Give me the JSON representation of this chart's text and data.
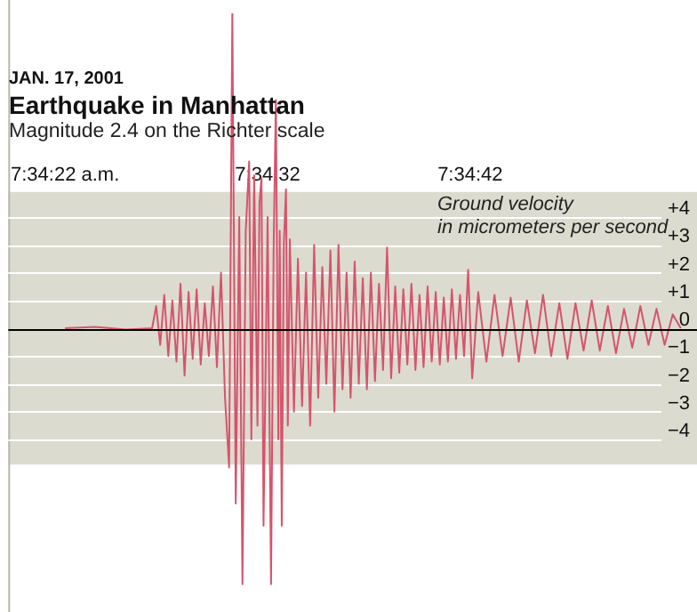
{
  "chart_data": {
    "type": "line",
    "title": "Earthquake in Manhattan",
    "subtitle": "Magnitude 2.4 on the Richter scale",
    "annotations": [
      "JAN. 17, 2001"
    ],
    "ylabel": "Ground velocity\nin micrometers per second",
    "xlim": [
      7.572,
      7.581444
    ],
    "ylim": [
      -10.2,
      11.8
    ],
    "xticks": [
      {
        "value": 7.572778,
        "label": "7:34:22 a.m."
      },
      {
        "value": 7.575556,
        "label": "7:34:32"
      },
      {
        "value": 7.578333,
        "label": "7:34:42"
      }
    ],
    "yticks": [
      {
        "value": 4,
        "label": "+4"
      },
      {
        "value": 3,
        "label": "+3"
      },
      {
        "value": 2,
        "label": "+2"
      },
      {
        "value": 1,
        "label": "+1"
      },
      0,
      {
        "value": -1,
        "label": "−1"
      },
      {
        "value": -2,
        "label": "−2"
      },
      {
        "value": -3,
        "label": "−3"
      },
      {
        "value": -4,
        "label": "−4"
      }
    ],
    "grid": "y",
    "legend": false,
    "marker": "none",
    "line_style": "solid",
    "bands": [
      {
        "axis": "y",
        "from": -4.9,
        "to": 4.9,
        "color": "#dcdbcf"
      }
    ],
    "ref_lines": [
      {
        "axis": "y",
        "value": 0,
        "color": "#000000"
      }
    ],
    "series": [
      {
        "color": "#d5546c",
        "x": [
          7.572778,
          7.573194,
          7.573611,
          7.573972,
          7.574028,
          7.574083,
          7.574139,
          7.574194,
          7.57425,
          7.574306,
          7.574361,
          7.574417,
          7.574472,
          7.574528,
          7.574583,
          7.574639,
          7.574694,
          7.57475,
          7.574806,
          7.574861,
          7.574917,
          7.574972,
          7.575028,
          7.575072,
          7.575119,
          7.575167,
          7.575211,
          7.575256,
          7.575303,
          7.575333,
          7.575372,
          7.575417,
          7.575444,
          7.575472,
          7.5755,
          7.575556,
          7.575603,
          7.575639,
          7.575669,
          7.575703,
          7.575722,
          7.57575,
          7.575778,
          7.575808,
          7.575833,
          7.575861,
          7.575917,
          7.575972,
          7.576028,
          7.576083,
          7.576139,
          7.576194,
          7.57625,
          7.576306,
          7.576361,
          7.576417,
          7.576472,
          7.576528,
          7.576583,
          7.576639,
          7.576694,
          7.57675,
          7.576806,
          7.576861,
          7.576917,
          7.576972,
          7.577028,
          7.577083,
          7.577139,
          7.577194,
          7.57725,
          7.577306,
          7.577361,
          7.577417,
          7.577472,
          7.577528,
          7.577583,
          7.577639,
          7.577694,
          7.57775,
          7.577806,
          7.577861,
          7.577917,
          7.577972,
          7.578028,
          7.578083,
          7.578139,
          7.578194,
          7.57825,
          7.578306,
          7.578361,
          7.578444,
          7.578556,
          7.578667,
          7.578778,
          7.578889,
          7.579,
          7.579111,
          7.579222,
          7.579333,
          7.579444,
          7.579556,
          7.579667,
          7.579778,
          7.579889,
          7.58,
          7.580111,
          7.580222,
          7.580333,
          7.580444,
          7.580556,
          7.580667,
          7.580778,
          7.580889,
          7.581,
          7.581111,
          7.581222
        ],
        "values": [
          0,
          0.05,
          -0.05,
          0,
          0.8,
          -0.6,
          1.2,
          -1.0,
          1.0,
          -1.2,
          1.6,
          -1.7,
          1.3,
          -1.1,
          1.4,
          -1.3,
          0.9,
          -1.0,
          1.5,
          -1.4,
          2.0,
          -2.5,
          -5,
          11.3,
          -6.3,
          4.0,
          -9.2,
          3.5,
          6.0,
          -4.0,
          5.5,
          -3.5,
          4.5,
          5.4,
          -7.1,
          4.0,
          -9.2,
          3.0,
          8.2,
          -4.0,
          3.5,
          -7.1,
          3.0,
          5.0,
          -3.5,
          3.2,
          -3.0,
          2.5,
          -2.8,
          2.0,
          -3.5,
          3.0,
          -2.5,
          2.2,
          -2.0,
          2.8,
          -3.0,
          3.0,
          -2.2,
          2.0,
          -2.5,
          2.4,
          -2.0,
          1.8,
          -2.2,
          2.0,
          -1.9,
          1.6,
          -1.5,
          2.9,
          -1.8,
          1.5,
          -1.6,
          1.4,
          -1.3,
          1.6,
          -1.5,
          1.2,
          -1.4,
          1.5,
          -1.2,
          1.3,
          -1.3,
          1.1,
          -1.2,
          1.4,
          -1.1,
          1.2,
          -1.0,
          2.1,
          -1.8,
          1.3,
          -1.2,
          1.2,
          -1.0,
          1.1,
          -1.2,
          1.0,
          -0.9,
          1.2,
          -1.0,
          0.9,
          -1.1,
          0.9,
          -0.8,
          1.0,
          -0.8,
          0.8,
          -0.9,
          0.7,
          -0.7,
          0.8,
          -0.6,
          0.7,
          -0.6,
          0.5,
          0
        ]
      }
    ]
  }
}
